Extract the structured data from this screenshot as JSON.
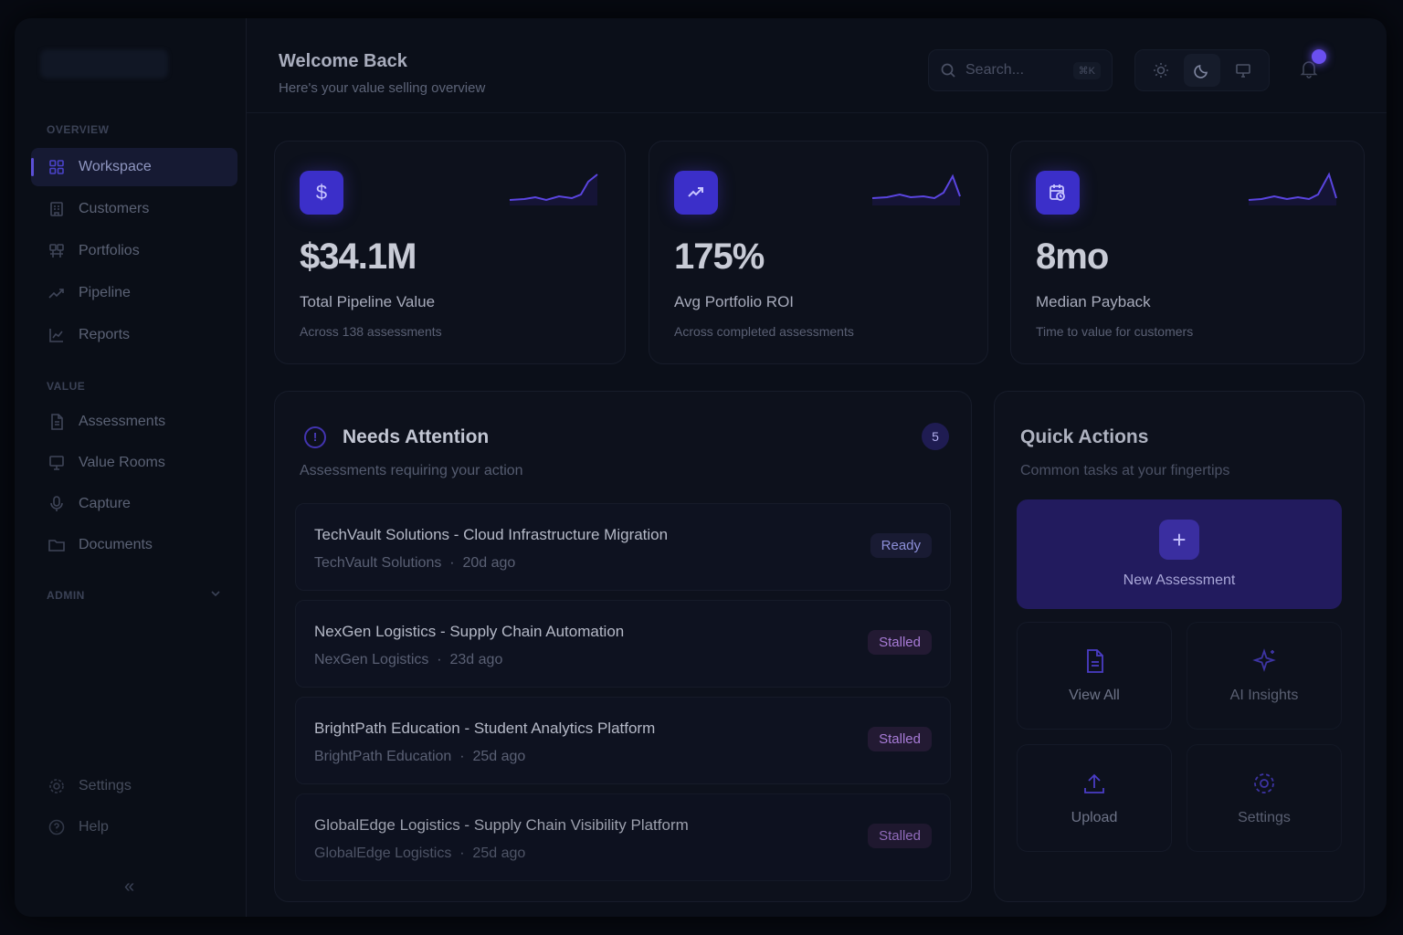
{
  "header": {
    "title": "Welcome Back",
    "subtitle": "Here's your value selling overview",
    "search_placeholder": "Search...",
    "search_shortcut": "⌘K"
  },
  "sidebar": {
    "sections": {
      "overview": "OVERVIEW",
      "value": "VALUE",
      "admin": "ADMIN"
    },
    "items": [
      {
        "label": "Workspace",
        "icon": "grid-icon",
        "active": true
      },
      {
        "label": "Customers",
        "icon": "building-icon"
      },
      {
        "label": "Portfolios",
        "icon": "portfolio-icon"
      },
      {
        "label": "Pipeline",
        "icon": "trend-icon"
      },
      {
        "label": "Reports",
        "icon": "chart-icon"
      },
      {
        "label": "Assessments",
        "icon": "document-icon"
      },
      {
        "label": "Value Rooms",
        "icon": "presentation-icon"
      },
      {
        "label": "Capture",
        "icon": "microphone-icon"
      },
      {
        "label": "Documents",
        "icon": "folder-icon"
      }
    ],
    "footer": [
      {
        "label": "Settings",
        "icon": "gear-icon"
      },
      {
        "label": "Help",
        "icon": "help-icon"
      }
    ],
    "collapse_glyph": "«"
  },
  "stats": [
    {
      "value": "$34.1M",
      "label": "Total Pipeline Value",
      "desc": "Across 138 assessments",
      "icon": "dollar-icon",
      "badge_glyph": "$"
    },
    {
      "value": "175%",
      "label": "Avg Portfolio ROI",
      "desc": "Across completed assessments",
      "icon": "trending-up-icon"
    },
    {
      "value": "8mo",
      "label": "Median Payback",
      "desc": "Time to value for customers",
      "icon": "calendar-clock-icon"
    }
  ],
  "attention": {
    "title": "Needs Attention",
    "subtitle": "Assessments requiring your action",
    "count": "5",
    "icon_glyph": "!",
    "rows": [
      {
        "title": "TechVault Solutions - Cloud Infrastructure Migration",
        "company": "TechVault Solutions",
        "age": "20d ago",
        "status": "Ready"
      },
      {
        "title": "NexGen Logistics - Supply Chain Automation",
        "company": "NexGen Logistics",
        "age": "23d ago",
        "status": "Stalled"
      },
      {
        "title": "BrightPath Education - Student Analytics Platform",
        "company": "BrightPath Education",
        "age": "25d ago",
        "status": "Stalled"
      },
      {
        "title": "GlobalEdge Logistics - Supply Chain Visibility Platform",
        "company": "GlobalEdge Logistics",
        "age": "25d ago",
        "status": "Stalled"
      }
    ],
    "separator": "·"
  },
  "quick_actions": {
    "title": "Quick Actions",
    "subtitle": "Common tasks at your fingertips",
    "primary": {
      "label": "New Assessment",
      "glyph": "+"
    },
    "tiles": [
      {
        "label": "View All",
        "icon": "file-icon"
      },
      {
        "label": "AI Insights",
        "icon": "sparkle-icon"
      },
      {
        "label": "Upload",
        "icon": "upload-icon"
      },
      {
        "label": "Settings",
        "icon": "gear-icon"
      }
    ]
  },
  "colors": {
    "accent": "#3b2fc9",
    "ready": "#8c8fd8",
    "stalled": "#a77bd6",
    "background": "#0b0f19"
  }
}
